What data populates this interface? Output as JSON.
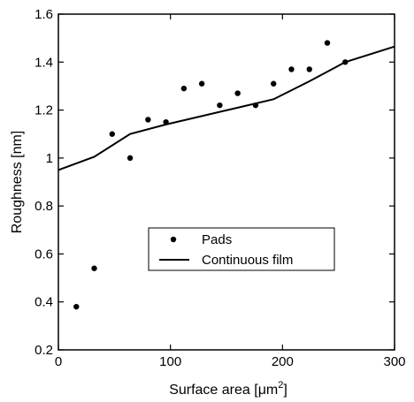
{
  "chart_data": {
    "type": "scatter",
    "xlabel": "Surface area  [μm²]",
    "xlabel_main": "Surface area  [μm",
    "xlabel_sup": "2",
    "xlabel_close": "]",
    "ylabel": "Roughness [nm]",
    "xlim": [
      0,
      300
    ],
    "ylim": [
      0.2,
      1.6
    ],
    "x_ticks": [
      0,
      100,
      200,
      300
    ],
    "x_tick_labels": [
      "0",
      "100",
      "200",
      "300"
    ],
    "y_ticks": [
      0.2,
      0.4,
      0.6,
      0.8,
      1.0,
      1.2,
      1.4,
      1.6
    ],
    "y_tick_labels": [
      "0.2",
      "0.4",
      "0.6",
      "0.8",
      "1",
      "1.2",
      "1.4",
      "1.6"
    ],
    "grid": false,
    "legend_position": "center",
    "series": [
      {
        "name": "Pads",
        "style": "markers",
        "color": "#000000",
        "x": [
          16,
          32,
          48,
          64,
          80,
          96,
          112,
          128,
          144,
          160,
          176,
          192,
          208,
          224,
          240,
          256
        ],
        "y": [
          0.38,
          0.54,
          1.1,
          1.0,
          1.16,
          1.15,
          1.29,
          1.31,
          1.22,
          1.27,
          1.22,
          1.31,
          1.37,
          1.37,
          1.48,
          1.4
        ]
      },
      {
        "name": "Continuous film",
        "style": "line",
        "color": "#000000",
        "x": [
          0,
          32,
          64,
          96,
          128,
          160,
          192,
          224,
          256,
          300
        ],
        "y": [
          0.95,
          1.005,
          1.1,
          1.14,
          1.175,
          1.21,
          1.245,
          1.32,
          1.4,
          1.465
        ]
      }
    ]
  }
}
